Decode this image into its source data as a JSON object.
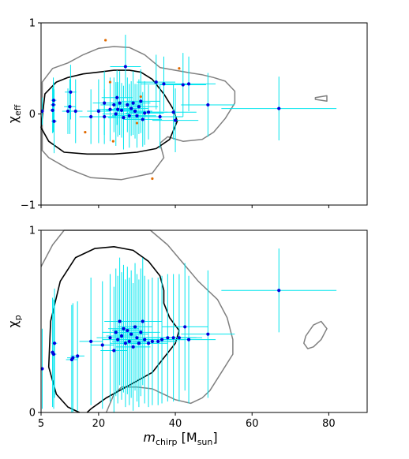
{
  "chart_data": [
    {
      "type": "scatter",
      "xlim": [
        5,
        90
      ],
      "ylim": [
        -1,
        1
      ],
      "xticks": [
        "5",
        "20",
        "40",
        "60",
        "80"
      ],
      "yticks": [
        "−1",
        "0",
        "1"
      ],
      "xlabel": "",
      "ylabel": {
        "main": "χ",
        "sub": "eff"
      },
      "grid": false,
      "colors": {
        "points": "#0000dd",
        "errorbars": "#00e5ee",
        "inner_contour": "#000000",
        "outer_contour": "#808080",
        "highlight_points": "#e06a00"
      },
      "points": [
        {
          "x": 5.3,
          "y": 0.03,
          "xe": 0.3,
          "ye": 0.15
        },
        {
          "x": 8.0,
          "y": 0.04,
          "xe": 0.6,
          "ye": 0.25
        },
        {
          "x": 8.2,
          "y": 0.1,
          "xe": 0.7,
          "ye": 0.3
        },
        {
          "x": 8.3,
          "y": 0.15,
          "xe": 0.7,
          "ye": 0.2
        },
        {
          "x": 8.4,
          "y": -0.08,
          "xe": 0.7,
          "ye": 0.35
        },
        {
          "x": 12.0,
          "y": 0.03,
          "xe": 1.5,
          "ye": 0.25
        },
        {
          "x": 12.5,
          "y": 0.08,
          "xe": 1.5,
          "ye": 0.3
        },
        {
          "x": 12.7,
          "y": 0.24,
          "xe": 1.5,
          "ye": 0.3
        },
        {
          "x": 14.0,
          "y": 0.03,
          "xe": 1.8,
          "ye": 0.35
        },
        {
          "x": 18.0,
          "y": -0.03,
          "xe": 3,
          "ye": 0.3
        },
        {
          "x": 20.0,
          "y": 0.03,
          "xe": 3,
          "ye": 0.35
        },
        {
          "x": 21.5,
          "y": -0.03,
          "xe": 3,
          "ye": 0.3
        },
        {
          "x": 21.5,
          "y": 0.12,
          "xe": 3,
          "ye": 0.35
        },
        {
          "x": 23.0,
          "y": 0.05,
          "xe": 3.5,
          "ye": 0.35
        },
        {
          "x": 24.0,
          "y": 0.1,
          "xe": 3.5,
          "ye": 0.3
        },
        {
          "x": 24.5,
          "y": 0.0,
          "xe": 3.5,
          "ye": 0.35
        },
        {
          "x": 24.8,
          "y": 0.18,
          "xe": 4,
          "ye": 0.3
        },
        {
          "x": 25.0,
          "y": 0.05,
          "xe": 4,
          "ye": 0.3
        },
        {
          "x": 25.5,
          "y": 0.12,
          "xe": 4,
          "ye": 0.35
        },
        {
          "x": 26.0,
          "y": 0.04,
          "xe": 4,
          "ye": 0.3
        },
        {
          "x": 26.5,
          "y": -0.04,
          "xe": 4,
          "ye": 0.35
        },
        {
          "x": 27.0,
          "y": 0.52,
          "xe": 4,
          "ye": 0.35
        },
        {
          "x": 27.5,
          "y": 0.1,
          "xe": 4,
          "ye": 0.3
        },
        {
          "x": 28.0,
          "y": -0.02,
          "xe": 4.5,
          "ye": 0.35
        },
        {
          "x": 28.5,
          "y": 0.06,
          "xe": 4.5,
          "ye": 0.3
        },
        {
          "x": 29.0,
          "y": 0.12,
          "xe": 4.5,
          "ye": 0.35
        },
        {
          "x": 29.5,
          "y": 0.03,
          "xe": 4.5,
          "ye": 0.3
        },
        {
          "x": 30.0,
          "y": -0.02,
          "xe": 5,
          "ye": 0.35
        },
        {
          "x": 30.5,
          "y": 0.08,
          "xe": 5,
          "ye": 0.3
        },
        {
          "x": 31.0,
          "y": 0.14,
          "xe": 5,
          "ye": 0.35
        },
        {
          "x": 31.5,
          "y": -0.06,
          "xe": 5,
          "ye": 0.3
        },
        {
          "x": 32.0,
          "y": 0.01,
          "xe": 5,
          "ye": 0.35
        },
        {
          "x": 33.0,
          "y": 0.02,
          "xe": 5,
          "ye": 0.3
        },
        {
          "x": 35.0,
          "y": 0.35,
          "xe": 5,
          "ye": 0.3
        },
        {
          "x": 36.0,
          "y": -0.03,
          "xe": 6,
          "ye": 0.35
        },
        {
          "x": 37.0,
          "y": 0.33,
          "xe": 6,
          "ye": 0.3
        },
        {
          "x": 39.5,
          "y": 0.02,
          "xe": 6,
          "ye": 0.3
        },
        {
          "x": 40.0,
          "y": -0.07,
          "xe": 6,
          "ye": 0.35
        },
        {
          "x": 42.0,
          "y": 0.32,
          "xe": 6,
          "ye": 0.35
        },
        {
          "x": 43.5,
          "y": 0.33,
          "xe": 7,
          "ye": 0.3
        },
        {
          "x": 48.5,
          "y": 0.1,
          "xe": 7,
          "ye": 0.35
        },
        {
          "x": 67.0,
          "y": 0.06,
          "xe": 15,
          "ye": 0.35
        }
      ],
      "highlight_points": [
        {
          "x": 21.8,
          "y": 0.81
        },
        {
          "x": 23.0,
          "y": 0.35
        },
        {
          "x": 16.5,
          "y": -0.2
        },
        {
          "x": 23.8,
          "y": -0.3
        },
        {
          "x": 31.0,
          "y": 0.19
        },
        {
          "x": 41.0,
          "y": 0.5
        },
        {
          "x": 34.0,
          "y": -0.71
        },
        {
          "x": 30.0,
          "y": -0.1
        }
      ],
      "inner_contour": [
        [
          6,
          0.22
        ],
        [
          9,
          0.35
        ],
        [
          12,
          0.4
        ],
        [
          16,
          0.44
        ],
        [
          20,
          0.46
        ],
        [
          24,
          0.48
        ],
        [
          28,
          0.48
        ],
        [
          31,
          0.46
        ],
        [
          34,
          0.38
        ],
        [
          37,
          0.22
        ],
        [
          39.5,
          0.05
        ],
        [
          40.5,
          -0.08
        ],
        [
          38.5,
          -0.28
        ],
        [
          35,
          -0.38
        ],
        [
          30,
          -0.42
        ],
        [
          24,
          -0.44
        ],
        [
          17,
          -0.44
        ],
        [
          11,
          -0.42
        ],
        [
          7,
          -0.3
        ],
        [
          5,
          -0.15
        ]
      ],
      "outer_contour": [
        [
          5.3,
          0.35
        ],
        [
          8,
          0.5
        ],
        [
          12,
          0.56
        ],
        [
          16,
          0.65
        ],
        [
          20,
          0.72
        ],
        [
          24,
          0.74
        ],
        [
          28,
          0.73
        ],
        [
          32,
          0.65
        ],
        [
          36,
          0.51
        ],
        [
          40,
          0.48
        ],
        [
          44,
          0.45
        ],
        [
          47,
          0.43
        ],
        [
          50,
          0.4
        ],
        [
          53,
          0.36
        ],
        [
          55.5,
          0.25
        ],
        [
          55.5,
          0.12
        ],
        [
          53,
          -0.05
        ],
        [
          50,
          -0.2
        ],
        [
          47,
          -0.28
        ],
        [
          42,
          -0.3
        ],
        [
          38,
          -0.25
        ],
        [
          36,
          -0.32
        ],
        [
          37,
          -0.48
        ],
        [
          34,
          -0.65
        ],
        [
          26,
          -0.72
        ],
        [
          18,
          -0.7
        ],
        [
          12,
          -0.6
        ],
        [
          7,
          -0.48
        ],
        [
          5.3,
          -0.4
        ]
      ],
      "small_contour": [
        [
          76.5,
          0.16
        ],
        [
          79.5,
          0.14
        ],
        [
          79.5,
          0.2
        ],
        [
          76.5,
          0.18
        ]
      ]
    },
    {
      "type": "scatter",
      "xlim": [
        5,
        90
      ],
      "ylim": [
        0,
        1
      ],
      "xticks": [
        "5",
        "20",
        "40",
        "60",
        "80"
      ],
      "yticks": [
        "0",
        "1"
      ],
      "xlabel": {
        "main": "m",
        "sub": "chirp",
        "bracket": "[M",
        "bracket_sub": "sun",
        "close": "]"
      },
      "ylabel": {
        "main": "χ",
        "sub": "p"
      },
      "grid": false,
      "points": [
        {
          "x": 5.3,
          "y": 0.24,
          "xe": 0.3,
          "ye": 0.22
        },
        {
          "x": 8.0,
          "y": 0.33,
          "xe": 0.6,
          "ye": 0.3
        },
        {
          "x": 8.3,
          "y": 0.32,
          "xe": 0.7,
          "ye": 0.3
        },
        {
          "x": 8.5,
          "y": 0.38,
          "xe": 0.7,
          "ye": 0.3
        },
        {
          "x": 13.0,
          "y": 0.29,
          "xe": 1.5,
          "ye": 0.3
        },
        {
          "x": 13.3,
          "y": 0.3,
          "xe": 1.5,
          "ye": 0.3
        },
        {
          "x": 14.5,
          "y": 0.31,
          "xe": 1.8,
          "ye": 0.3
        },
        {
          "x": 18.0,
          "y": 0.39,
          "xe": 3,
          "ye": 0.35
        },
        {
          "x": 21.0,
          "y": 0.37,
          "xe": 3,
          "ye": 0.35
        },
        {
          "x": 23.0,
          "y": 0.41,
          "xe": 3.5,
          "ye": 0.35
        },
        {
          "x": 24.0,
          "y": 0.34,
          "xe": 3.5,
          "ye": 0.35
        },
        {
          "x": 24.5,
          "y": 0.44,
          "xe": 3.5,
          "ye": 0.35
        },
        {
          "x": 25.0,
          "y": 0.4,
          "xe": 4,
          "ye": 0.35
        },
        {
          "x": 25.5,
          "y": 0.5,
          "xe": 4,
          "ye": 0.35
        },
        {
          "x": 26.0,
          "y": 0.42,
          "xe": 4,
          "ye": 0.35
        },
        {
          "x": 26.5,
          "y": 0.46,
          "xe": 4,
          "ye": 0.35
        },
        {
          "x": 27.0,
          "y": 0.38,
          "xe": 4,
          "ye": 0.35
        },
        {
          "x": 27.5,
          "y": 0.45,
          "xe": 4,
          "ye": 0.35
        },
        {
          "x": 28.0,
          "y": 0.39,
          "xe": 4.5,
          "ye": 0.35
        },
        {
          "x": 28.5,
          "y": 0.43,
          "xe": 4.5,
          "ye": 0.35
        },
        {
          "x": 29.0,
          "y": 0.36,
          "xe": 4.5,
          "ye": 0.35
        },
        {
          "x": 29.5,
          "y": 0.47,
          "xe": 4.5,
          "ye": 0.35
        },
        {
          "x": 30.0,
          "y": 0.41,
          "xe": 5,
          "ye": 0.35
        },
        {
          "x": 30.5,
          "y": 0.38,
          "xe": 5,
          "ye": 0.35
        },
        {
          "x": 31.0,
          "y": 0.44,
          "xe": 5,
          "ye": 0.35
        },
        {
          "x": 31.5,
          "y": 0.5,
          "xe": 5,
          "ye": 0.35
        },
        {
          "x": 32.0,
          "y": 0.4,
          "xe": 5,
          "ye": 0.35
        },
        {
          "x": 33.0,
          "y": 0.38,
          "xe": 5,
          "ye": 0.35
        },
        {
          "x": 34.0,
          "y": 0.39,
          "xe": 5,
          "ye": 0.35
        },
        {
          "x": 35.5,
          "y": 0.39,
          "xe": 5,
          "ye": 0.35
        },
        {
          "x": 36.5,
          "y": 0.4,
          "xe": 6,
          "ye": 0.35
        },
        {
          "x": 38.0,
          "y": 0.41,
          "xe": 6,
          "ye": 0.35
        },
        {
          "x": 39.5,
          "y": 0.41,
          "xe": 6,
          "ye": 0.35
        },
        {
          "x": 41.0,
          "y": 0.41,
          "xe": 6,
          "ye": 0.35
        },
        {
          "x": 42.5,
          "y": 0.47,
          "xe": 6,
          "ye": 0.35
        },
        {
          "x": 43.5,
          "y": 0.4,
          "xe": 7,
          "ye": 0.35
        },
        {
          "x": 48.5,
          "y": 0.43,
          "xe": 7,
          "ye": 0.35
        },
        {
          "x": 67.0,
          "y": 0.67,
          "xe": 15,
          "ye": 0.23
        }
      ],
      "inner_contour": [
        [
          15,
          0.0
        ],
        [
          12,
          0.03
        ],
        [
          9,
          0.1
        ],
        [
          7,
          0.25
        ],
        [
          7.5,
          0.5
        ],
        [
          10,
          0.72
        ],
        [
          14,
          0.85
        ],
        [
          19,
          0.9
        ],
        [
          24,
          0.91
        ],
        [
          29,
          0.89
        ],
        [
          33,
          0.83
        ],
        [
          36,
          0.75
        ],
        [
          37,
          0.67
        ],
        [
          37,
          0.6
        ],
        [
          38.5,
          0.52
        ],
        [
          41,
          0.45
        ],
        [
          40,
          0.38
        ],
        [
          37,
          0.3
        ],
        [
          34,
          0.22
        ],
        [
          28,
          0.15
        ],
        [
          22,
          0.08
        ],
        [
          18,
          0.02
        ],
        [
          17,
          0.0
        ]
      ],
      "outer_contour": [
        [
          5,
          0.8
        ],
        [
          8,
          0.92
        ],
        [
          11,
          1.0
        ],
        [
          33.5,
          1.0
        ],
        [
          38,
          0.92
        ],
        [
          42,
          0.82
        ],
        [
          46,
          0.72
        ],
        [
          51,
          0.62
        ],
        [
          53.5,
          0.52
        ],
        [
          55,
          0.4
        ],
        [
          55,
          0.32
        ],
        [
          52,
          0.22
        ],
        [
          49,
          0.12
        ],
        [
          47,
          0.08
        ],
        [
          44,
          0.05
        ],
        [
          40,
          0.07
        ],
        [
          37,
          0.1
        ],
        [
          34,
          0.13
        ],
        [
          30,
          0.14
        ],
        [
          26,
          0.14
        ],
        [
          24,
          0.1
        ],
        [
          22,
          0.0
        ]
      ],
      "small_contour": [
        [
          74,
          0.42
        ],
        [
          76,
          0.48
        ],
        [
          78,
          0.5
        ],
        [
          79.5,
          0.46
        ],
        [
          78,
          0.4
        ],
        [
          76,
          0.36
        ],
        [
          74.5,
          0.35
        ],
        [
          73.5,
          0.38
        ]
      ]
    }
  ]
}
